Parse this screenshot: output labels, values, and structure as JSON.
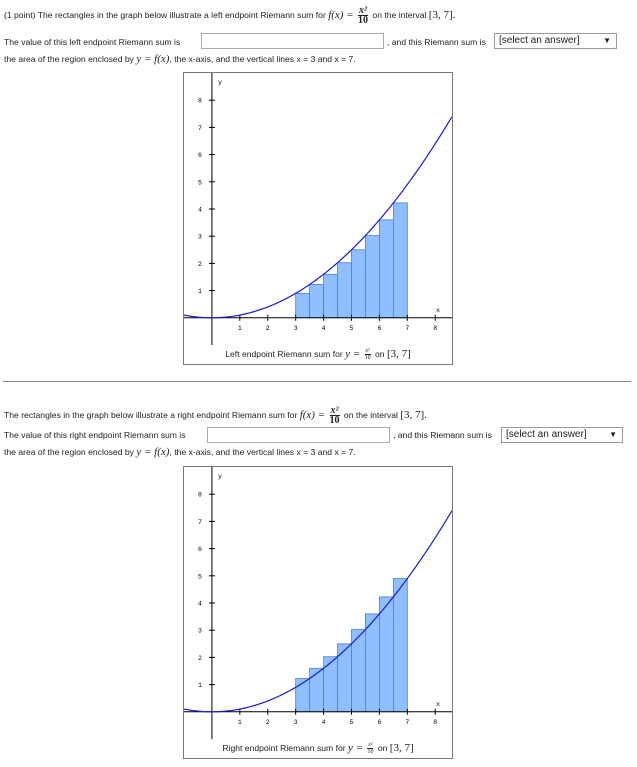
{
  "problem1": {
    "prefix": "(1 point) The rectangles in the graph below illustrate a left endpoint Riemann sum for",
    "func_lhs": "f(x) =",
    "frac_num": "x²",
    "frac_den": "10",
    "interval_text": "on the interval",
    "interval": "[3, 7].",
    "line2_a": "The value of this left endpoint Riemann sum is",
    "line2_b": ", and this Riemann sum is",
    "select_value": "[select an answer]",
    "line3_a": "the area of the region enclosed by",
    "line3_math": "y = f(x)",
    "line3_b": ", the x-axis, and the vertical lines x = 3 and x = 7.",
    "caption_a": "Left endpoint Riemann sum for",
    "caption_math": "y =",
    "caption_num": "x²",
    "caption_den": "10",
    "caption_on": "on",
    "caption_interval": "[3, 7]"
  },
  "problem2": {
    "prefix": "The rectangles in the graph below illustrate a right endpoint Riemann sum for",
    "func_lhs": "f(x) =",
    "frac_num": "x²",
    "frac_den": "10",
    "interval_text": "on the interval",
    "interval": "[3, 7].",
    "line2_a": "The value of this right endpoint Riemann sum is",
    "line2_b": ", and this Riemann sum is",
    "select_value": "[select an answer]",
    "line3_a": "the area of the region enclosed by",
    "line3_math": "y = f(x)",
    "line3_b": ", the x-axis, and the vertical lines x = 3 and x = 7.",
    "caption_a": "Right endpoint Riemann sum for",
    "caption_math": "y =",
    "caption_num": "x²",
    "caption_den": "10",
    "caption_on": "on",
    "caption_interval": "[3, 7]"
  },
  "colors": {
    "bar_fill": "#8fbfff",
    "bar_stroke": "#4a7fd8",
    "curve": "#1a1ad6"
  },
  "chart_data": [
    {
      "type": "bar",
      "function": "x^2/10",
      "x_tick_labels": [
        "1",
        "2",
        "3",
        "4",
        "5",
        "6",
        "7",
        "8"
      ],
      "y_tick_labels": [
        "1",
        "2",
        "3",
        "4",
        "5",
        "6",
        "7",
        "8"
      ],
      "xlabel": "x",
      "ylabel": "y",
      "xlim": [
        -1,
        8.6
      ],
      "ylim": [
        -1,
        9
      ],
      "interval": [
        3,
        7
      ],
      "rule": "left",
      "dx": 0.5,
      "bars": [
        {
          "x0": 3.0,
          "x1": 3.5,
          "height": 0.9
        },
        {
          "x0": 3.5,
          "x1": 4.0,
          "height": 1.225
        },
        {
          "x0": 4.0,
          "x1": 4.5,
          "height": 1.6
        },
        {
          "x0": 4.5,
          "x1": 5.0,
          "height": 2.025
        },
        {
          "x0": 5.0,
          "x1": 5.5,
          "height": 2.5
        },
        {
          "x0": 5.5,
          "x1": 6.0,
          "height": 3.025
        },
        {
          "x0": 6.0,
          "x1": 6.5,
          "height": 3.6
        },
        {
          "x0": 6.5,
          "x1": 7.0,
          "height": 4.225
        }
      ]
    },
    {
      "type": "bar",
      "function": "x^2/10",
      "x_tick_labels": [
        "1",
        "2",
        "3",
        "4",
        "5",
        "6",
        "7",
        "8"
      ],
      "y_tick_labels": [
        "1",
        "2",
        "3",
        "4",
        "5",
        "6",
        "7",
        "8"
      ],
      "xlabel": "x",
      "ylabel": "y",
      "xlim": [
        -1,
        8.6
      ],
      "ylim": [
        -1,
        9
      ],
      "interval": [
        3,
        7
      ],
      "rule": "right",
      "dx": 0.5,
      "bars": [
        {
          "x0": 3.0,
          "x1": 3.5,
          "height": 1.225
        },
        {
          "x0": 3.5,
          "x1": 4.0,
          "height": 1.6
        },
        {
          "x0": 4.0,
          "x1": 4.5,
          "height": 2.025
        },
        {
          "x0": 4.5,
          "x1": 5.0,
          "height": 2.5
        },
        {
          "x0": 5.0,
          "x1": 5.5,
          "height": 3.025
        },
        {
          "x0": 5.5,
          "x1": 6.0,
          "height": 3.6
        },
        {
          "x0": 6.0,
          "x1": 6.5,
          "height": 4.225
        },
        {
          "x0": 6.5,
          "x1": 7.0,
          "height": 4.9
        }
      ]
    }
  ]
}
